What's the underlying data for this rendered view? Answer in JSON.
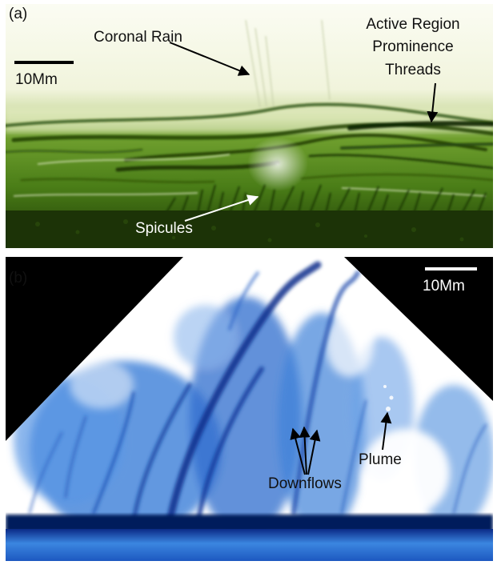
{
  "panel_a": {
    "tag": "(a)",
    "scale_label": "10Mm",
    "annotations": {
      "coronal_rain": "Coronal Rain",
      "prominence_line1": "Active Region",
      "prominence_line2": "Prominence",
      "prominence_line3": "Threads",
      "spicules": "Spicules"
    },
    "colors": {
      "tint": "#3f7a10",
      "dark": "#1f3d06",
      "bright": "#f4f7e4"
    }
  },
  "panel_b": {
    "tag": "(b)",
    "scale_label": "10Mm",
    "annotations": {
      "downflows": "Downflows",
      "plume": "Plume"
    },
    "colors": {
      "tint": "#1f5fc0",
      "dark": "#0a1f66",
      "background": "#000000"
    }
  }
}
